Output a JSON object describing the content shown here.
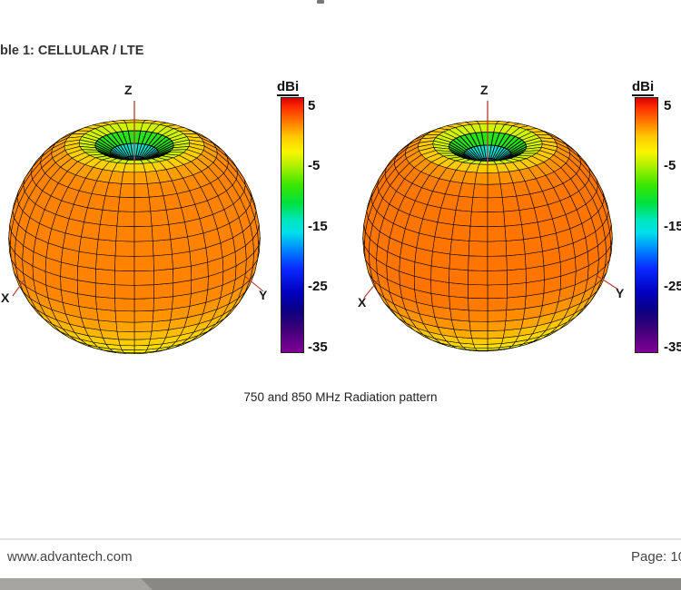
{
  "page": {
    "heading": "ble 1: CELLULAR / LTE",
    "caption": "750 and 850 MHz Radiation pattern",
    "footer": {
      "website": "www.advantech.com",
      "page_label": "Page: 10",
      "bar_light_color": "#a7a5a2",
      "bar_dark_color": "#8a8884"
    }
  },
  "figure": {
    "axis_labels": {
      "x": "X",
      "y": "Y",
      "z": "Z"
    },
    "axis_color": "#b03a2e",
    "colorbar_title": "dBi"
  },
  "chart_data": {
    "type": "3d-radiation-pattern-surface",
    "title": "750 and 850 MHz Radiation pattern",
    "units": "dBi",
    "colorbar": {
      "label": "dBi",
      "tick_values": [
        5,
        -5,
        -15,
        -25,
        -35
      ],
      "tick_labels": [
        "5",
        "-5",
        "-15",
        "-25",
        "-35"
      ],
      "top_value": 6.5,
      "bottom_value": -36
    },
    "radius_map": [
      6.5,
      -60
    ],
    "colormap_stops": [
      [
        6.5,
        [
          210,
          0,
          0
        ]
      ],
      [
        5,
        [
          255,
          40,
          0
        ]
      ],
      [
        2.5,
        [
          255,
          120,
          0
        ]
      ],
      [
        0,
        [
          255,
          200,
          0
        ]
      ],
      [
        -2.5,
        [
          250,
          245,
          0
        ]
      ],
      [
        -5,
        [
          170,
          240,
          0
        ]
      ],
      [
        -8,
        [
          60,
          230,
          0
        ]
      ],
      [
        -11,
        [
          0,
          225,
          60
        ]
      ],
      [
        -14,
        [
          0,
          230,
          190
        ]
      ],
      [
        -16,
        [
          0,
          225,
          235
        ]
      ],
      [
        -19,
        [
          0,
          130,
          255
        ]
      ],
      [
        -22,
        [
          10,
          40,
          255
        ]
      ],
      [
        -26,
        [
          0,
          0,
          190
        ]
      ],
      [
        -29,
        [
          10,
          0,
          130
        ]
      ],
      [
        -32,
        [
          60,
          0,
          120
        ]
      ],
      [
        -36,
        [
          130,
          0,
          150
        ]
      ]
    ],
    "plots": [
      {
        "frequency_mhz": 750,
        "axis_labels": {
          "x": "X",
          "y": "Y",
          "z": "Z"
        },
        "model": {
          "eq_gain_dbi": 2.2,
          "zenith_dip_db": 22,
          "dip_sharpness": 14,
          "lower_drop_db": 7,
          "ripple_db": 0.35
        }
      },
      {
        "frequency_mhz": 850,
        "axis_labels": {
          "x": "X",
          "y": "Y",
          "z": "Z"
        },
        "model": {
          "eq_gain_dbi": 2.6,
          "zenith_dip_db": 23,
          "dip_sharpness": 14,
          "lower_drop_db": 8.5,
          "ripple_db": 1.2
        }
      }
    ]
  }
}
